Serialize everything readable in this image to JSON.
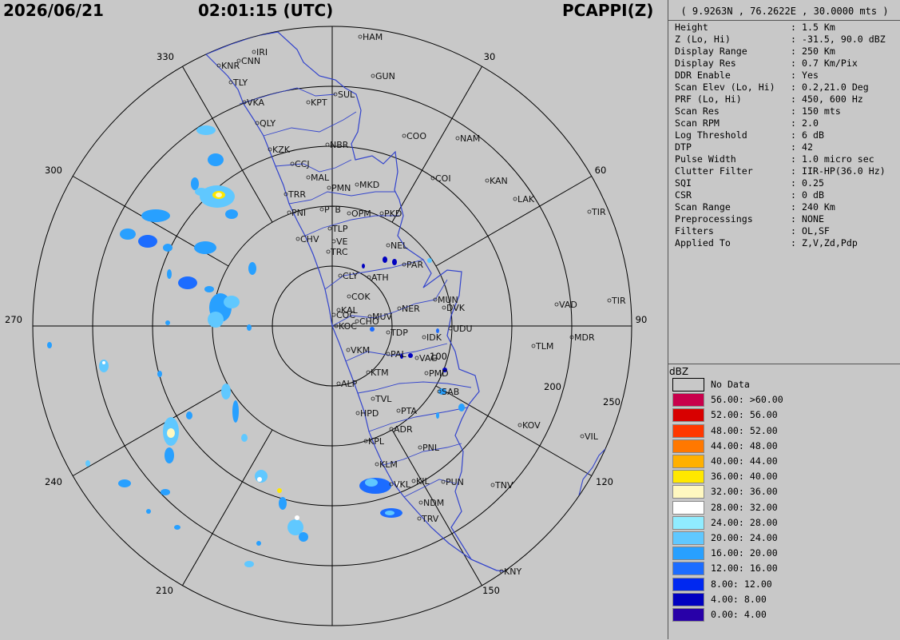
{
  "header": {
    "date": "2026/06/21",
    "time": "02:01:15 (UTC)",
    "product": "PCAPPI(Z)"
  },
  "panel": {
    "coords": "( 9.9263N , 76.2622E , 30.0000 mts )",
    "params": [
      {
        "key": "Height",
        "value": "1.5 Km"
      },
      {
        "key": "Z (Lo, Hi)",
        "value": "-31.5, 90.0 dBZ"
      },
      {
        "key": "Display Range",
        "value": "250 Km"
      },
      {
        "key": "Display Res",
        "value": "0.7 Km/Pix"
      },
      {
        "key": "DDR Enable",
        "value": "Yes"
      },
      {
        "key": "Scan Elev (Lo, Hi)",
        "value": "0.2,21.0 Deg"
      },
      {
        "key": "PRF (Lo, Hi)",
        "value": "450, 600 Hz"
      },
      {
        "key": "Scan Res",
        "value": "150 mts"
      },
      {
        "key": "Scan RPM",
        "value": "2.0"
      },
      {
        "key": "Log Threshold",
        "value": "6 dB"
      },
      {
        "key": "DTP",
        "value": "42"
      },
      {
        "key": "Pulse Width",
        "value": "1.0 micro sec"
      },
      {
        "key": "Clutter Filter",
        "value": "IIR-HP(36.0 Hz)"
      },
      {
        "key": "SQI",
        "value": "0.25"
      },
      {
        "key": "CSR",
        "value": "0 dB"
      },
      {
        "key": "Scan Range",
        "value": "240 Km"
      },
      {
        "key": "Preprocessings",
        "value": "NONE"
      },
      {
        "key": "Filters",
        "value": "OL,SF"
      },
      {
        "key": "Applied To",
        "value": "Z,V,Zd,Pdp"
      }
    ]
  },
  "legend": {
    "unit": "dBZ",
    "items": [
      {
        "label": "No Data",
        "color": "#c8c8c8"
      },
      {
        "label": "56.00: >60.00",
        "color": "#c8004b"
      },
      {
        "label": "52.00: 56.00",
        "color": "#d80000"
      },
      {
        "label": "48.00: 52.00",
        "color": "#ff3800"
      },
      {
        "label": "44.00: 48.00",
        "color": "#ff7800"
      },
      {
        "label": "40.00: 44.00",
        "color": "#ffb000"
      },
      {
        "label": "36.00: 40.00",
        "color": "#ffe800"
      },
      {
        "label": "32.00: 36.00",
        "color": "#fff8c0"
      },
      {
        "label": "28.00: 32.00",
        "color": "#ffffff"
      },
      {
        "label": "24.00: 28.00",
        "color": "#90ecff"
      },
      {
        "label": "20.00: 24.00",
        "color": "#60c8ff"
      },
      {
        "label": "16.00: 20.00",
        "color": "#28a0ff"
      },
      {
        "label": "12.00: 16.00",
        "color": "#1c6cff"
      },
      {
        "label": "8.00: 12.00",
        "color": "#0028f0"
      },
      {
        "label": "4.00: 8.00",
        "color": "#0000c0"
      },
      {
        "label": "0.00: 4.00",
        "color": "#2800a8"
      }
    ]
  },
  "ppi": {
    "azimuth_labels": [
      "30",
      "60",
      "90",
      "120",
      "150",
      "210",
      "240",
      "270",
      "300",
      "330"
    ],
    "range_labels": [
      "100",
      "200",
      "250"
    ],
    "cities": [
      "HAM",
      "IRI",
      "CNN",
      "KNR",
      "TLY",
      "GUN",
      "SUL",
      "VKA",
      "KPT",
      "QLY",
      "COO",
      "NAM",
      "NBR",
      "KZK",
      "CCJ",
      "MAL",
      "COI",
      "KAN",
      "MKD",
      "PMN",
      "LAK",
      "TRR",
      "PNI",
      "PTB",
      "OPM",
      "PKD",
      "TIR",
      "TLP",
      "CHV",
      "VE",
      "NEL",
      "TRC",
      "PAR",
      "CLY",
      "ATH",
      "COK",
      "MUN",
      "DVK",
      "VAD",
      "TIR",
      "KAL",
      "COC",
      "MUV",
      "NER",
      "CHO",
      "KOC",
      "UDU",
      "TDP",
      "IDK",
      "MDR",
      "TLM",
      "VKM",
      "PAL",
      "VAG",
      "PMD",
      "KTM",
      "ALP",
      "SAB",
      "TVL",
      "HPD",
      "PTA",
      "KOV",
      "ADR",
      "VIL",
      "KPL",
      "PNL",
      "KLM",
      "VKL",
      "KIL",
      "PUN",
      "TNV",
      "NDM",
      "TRV",
      "KNY"
    ]
  }
}
